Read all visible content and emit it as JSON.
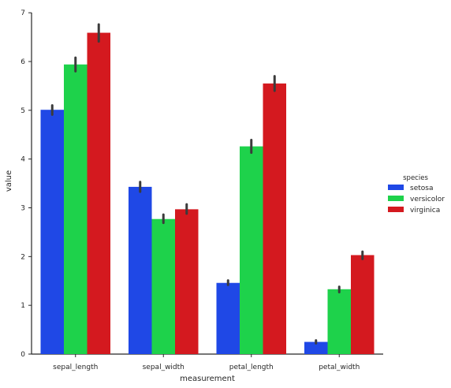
{
  "chart_data": {
    "type": "bar",
    "xlabel": "measurement",
    "ylabel": "value",
    "ylim": [
      0,
      7.1
    ],
    "yticks": [
      0,
      1,
      2,
      3,
      4,
      5,
      6,
      7
    ],
    "categories": [
      "sepal_length",
      "sepal_width",
      "petal_length",
      "petal_width"
    ],
    "grid": false,
    "legend": {
      "title": "species",
      "placement": "right"
    },
    "colors": [
      "#1f48e6",
      "#1ed24b",
      "#d4191f"
    ],
    "error_bar_color": "#3b3b3b",
    "series": [
      {
        "name": "setosa",
        "values": [
          5.01,
          3.43,
          1.46,
          0.25
        ],
        "ci_low": [
          4.91,
          3.33,
          1.42,
          0.22
        ],
        "ci_high": [
          5.1,
          3.53,
          1.51,
          0.28
        ]
      },
      {
        "name": "versicolor",
        "values": [
          5.94,
          2.77,
          4.26,
          1.33
        ],
        "ci_low": [
          5.8,
          2.69,
          4.13,
          1.27
        ],
        "ci_high": [
          6.08,
          2.86,
          4.39,
          1.38
        ]
      },
      {
        "name": "virginica",
        "values": [
          6.59,
          2.97,
          5.55,
          2.03
        ],
        "ci_low": [
          6.41,
          2.88,
          5.4,
          1.95
        ],
        "ci_high": [
          6.76,
          3.07,
          5.7,
          2.1
        ]
      }
    ]
  }
}
